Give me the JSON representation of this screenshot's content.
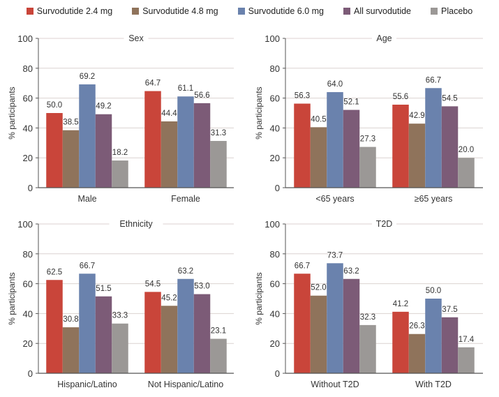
{
  "legend": [
    {
      "label": "Survodutide 2.4 mg",
      "color": "#c9453a"
    },
    {
      "label": "Survodutide 4.8 mg",
      "color": "#8f735b"
    },
    {
      "label": "Survodutide 6.0 mg",
      "color": "#6a82ad"
    },
    {
      "label": "All survodutide",
      "color": "#7c5b77"
    },
    {
      "label": "Placebo",
      "color": "#9b9896"
    }
  ],
  "chart_data": [
    {
      "type": "bar",
      "title": "Sex",
      "ylabel": "% participants",
      "xlabel": "",
      "ylim": [
        0,
        100
      ],
      "yticks": [
        "0",
        "20",
        "40",
        "60",
        "80",
        "100"
      ],
      "grid": true,
      "categories": [
        "Male",
        "Female"
      ],
      "series": [
        {
          "name": "Survodutide 2.4 mg",
          "values": [
            50.0,
            64.7
          ],
          "labels": [
            "50.0",
            "64.7"
          ]
        },
        {
          "name": "Survodutide 4.8 mg",
          "values": [
            38.5,
            44.4
          ],
          "labels": [
            "38.5",
            "44.4"
          ]
        },
        {
          "name": "Survodutide 6.0 mg",
          "values": [
            69.2,
            61.1
          ],
          "labels": [
            "69.2",
            "61.1"
          ]
        },
        {
          "name": "All survodutide",
          "values": [
            49.2,
            56.6
          ],
          "labels": [
            "49.2",
            "56.6"
          ]
        },
        {
          "name": "Placebo",
          "values": [
            18.2,
            31.3
          ],
          "labels": [
            "18.2",
            "31.3"
          ]
        }
      ]
    },
    {
      "type": "bar",
      "title": "Age",
      "ylabel": "% participants",
      "xlabel": "",
      "ylim": [
        0,
        100
      ],
      "yticks": [
        "0",
        "20",
        "40",
        "60",
        "80",
        "100"
      ],
      "grid": true,
      "categories": [
        "<65 years",
        "≥65 years"
      ],
      "series": [
        {
          "name": "Survodutide 2.4 mg",
          "values": [
            56.3,
            55.6
          ],
          "labels": [
            "56.3",
            "55.6"
          ]
        },
        {
          "name": "Survodutide 4.8 mg",
          "values": [
            40.5,
            42.9
          ],
          "labels": [
            "40.5",
            "42.9"
          ]
        },
        {
          "name": "Survodutide 6.0 mg",
          "values": [
            64.0,
            66.7
          ],
          "labels": [
            "64.0",
            "66.7"
          ]
        },
        {
          "name": "All survodutide",
          "values": [
            52.1,
            54.5
          ],
          "labels": [
            "52.1",
            "54.5"
          ]
        },
        {
          "name": "Placebo",
          "values": [
            27.3,
            20.0
          ],
          "labels": [
            "27.3",
            "20.0"
          ]
        }
      ]
    },
    {
      "type": "bar",
      "title": "Ethnicity",
      "ylabel": "% participants",
      "xlabel": "",
      "ylim": [
        0,
        100
      ],
      "yticks": [
        "0",
        "20",
        "40",
        "60",
        "80",
        "100"
      ],
      "grid": true,
      "categories": [
        "Hispanic/Latino",
        "Not Hispanic/Latino"
      ],
      "series": [
        {
          "name": "Survodutide 2.4 mg",
          "values": [
            62.5,
            54.5
          ],
          "labels": [
            "62.5",
            "54.5"
          ]
        },
        {
          "name": "Survodutide 4.8 mg",
          "values": [
            30.8,
            45.2
          ],
          "labels": [
            "30.8",
            "45.2"
          ]
        },
        {
          "name": "Survodutide 6.0 mg",
          "values": [
            66.7,
            63.2
          ],
          "labels": [
            "66.7",
            "63.2"
          ]
        },
        {
          "name": "All survodutide",
          "values": [
            51.5,
            53.0
          ],
          "labels": [
            "51.5",
            "53.0"
          ]
        },
        {
          "name": "Placebo",
          "values": [
            33.3,
            23.1
          ],
          "labels": [
            "33.3",
            "23.1"
          ]
        }
      ]
    },
    {
      "type": "bar",
      "title": "T2D",
      "ylabel": "% participants",
      "xlabel": "",
      "ylim": [
        0,
        100
      ],
      "yticks": [
        "0",
        "20",
        "40",
        "60",
        "80",
        "100"
      ],
      "grid": true,
      "categories": [
        "Without T2D",
        "With T2D"
      ],
      "series": [
        {
          "name": "Survodutide 2.4 mg",
          "values": [
            66.7,
            41.2
          ],
          "labels": [
            "66.7",
            "41.2"
          ]
        },
        {
          "name": "Survodutide 4.8 mg",
          "values": [
            52.0,
            26.3
          ],
          "labels": [
            "52.0",
            "26.3"
          ]
        },
        {
          "name": "Survodutide 6.0 mg",
          "values": [
            73.7,
            50.0
          ],
          "labels": [
            "73.7",
            "50.0"
          ]
        },
        {
          "name": "All survodutide",
          "values": [
            63.2,
            37.5
          ],
          "labels": [
            "63.2",
            "37.5"
          ]
        },
        {
          "name": "Placebo",
          "values": [
            32.3,
            17.4
          ],
          "labels": [
            "32.3",
            "17.4"
          ]
        }
      ]
    }
  ]
}
